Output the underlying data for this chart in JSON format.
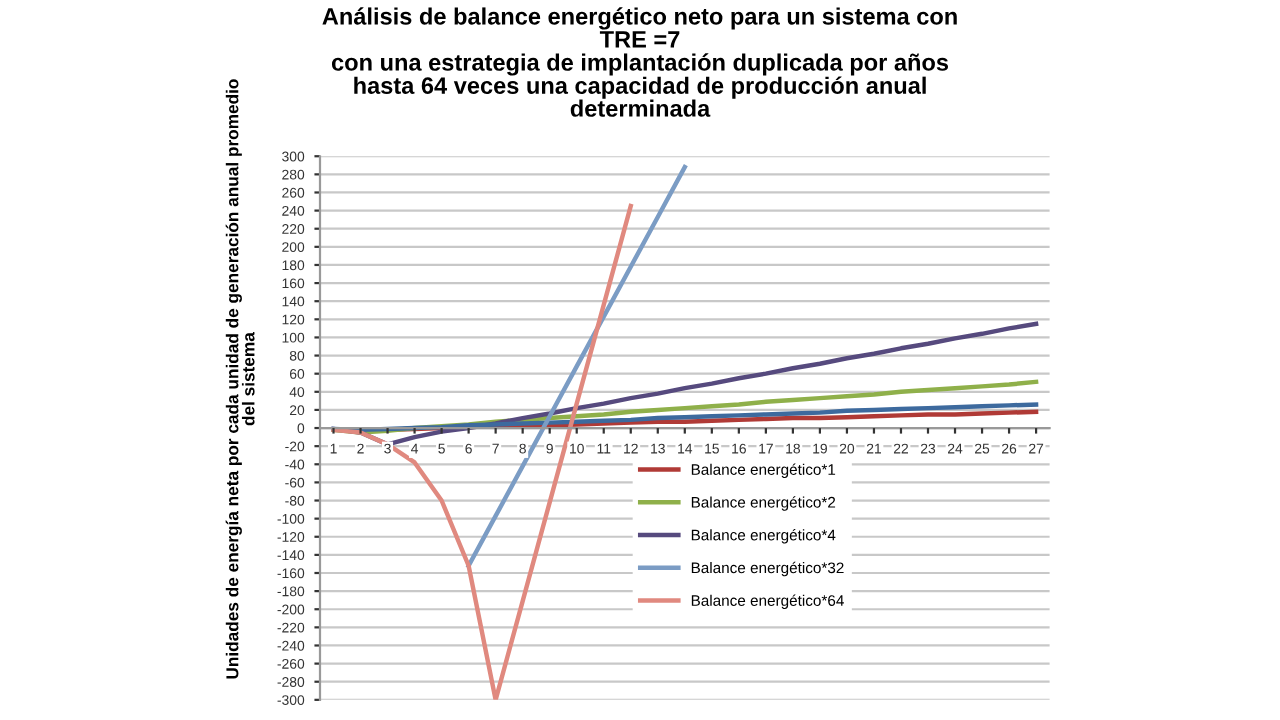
{
  "chart_data": {
    "type": "line",
    "title": "Análisis de balance energético neto para un sistema con\nTRE =7\ncon una estrategia de implantación duplicada por años\nhasta 64 veces una capacidad de producción anual\ndeterminada",
    "ylabel": "Unidades de energía neta por cada unidad de generación anual promedio\ndel sistema",
    "categories": [
      "1",
      "2",
      "3",
      "4",
      "5",
      "6",
      "7",
      "8",
      "9",
      "10",
      "11",
      "12",
      "13",
      "14",
      "15",
      "16",
      "17",
      "18",
      "19",
      "20",
      "21",
      "22",
      "23",
      "24",
      "25",
      "26",
      "27"
    ],
    "series": [
      {
        "name": "Balance energético*1",
        "color": "#b03a36",
        "values": [
          -2,
          -3,
          -2,
          -1,
          0,
          1,
          2,
          3,
          3,
          4,
          5,
          6,
          7,
          7,
          8,
          9,
          10,
          11,
          11,
          12,
          13,
          14,
          15,
          15,
          16,
          17,
          18
        ]
      },
      {
        "name": "Balance energético*2",
        "color": "#8fb04a",
        "values": [
          -2,
          -5,
          -3,
          0,
          2,
          4,
          7,
          9,
          11,
          13,
          15,
          18,
          20,
          22,
          24,
          26,
          29,
          31,
          33,
          35,
          37,
          40,
          42,
          44,
          46,
          48,
          51
        ]
      },
      {
        "name": "Balance energético*4",
        "color": "#564a7e",
        "values": [
          -1,
          -5,
          -18,
          -10,
          -4,
          0,
          5,
          11,
          16,
          22,
          27,
          33,
          38,
          44,
          49,
          55,
          60,
          66,
          71,
          77,
          82,
          88,
          93,
          99,
          104,
          110,
          115
        ]
      },
      {
        "color": "#3d6a9e",
        "values": [
          -1,
          -2,
          -1,
          0,
          1,
          3,
          4,
          5,
          6,
          7,
          8,
          9,
          11,
          12,
          13,
          14,
          15,
          16,
          17,
          19,
          20,
          21,
          22,
          23,
          24,
          25,
          26
        ]
      },
      {
        "name": "Balance energético*32",
        "color": "#7b9cc4",
        "values": [
          null,
          null,
          null,
          null,
          null,
          -152,
          -97,
          -42,
          13,
          68,
          123,
          178,
          233,
          288,
          null,
          null,
          null,
          null,
          null,
          null,
          null,
          null,
          null,
          null,
          null,
          null,
          null
        ]
      },
      {
        "name": "Balance energético*64",
        "color": "#e0897f",
        "values": [
          -2,
          -5,
          -18,
          -38,
          -80,
          -152,
          -300,
          -191,
          -82,
          27,
          136,
          245,
          null,
          null,
          null,
          null,
          null,
          null,
          null,
          null,
          null,
          null,
          null,
          null,
          null,
          null,
          null
        ]
      }
    ],
    "ylim": [
      -300,
      300
    ],
    "yticks": [
      -300,
      -280,
      -260,
      -240,
      -220,
      -200,
      -180,
      -160,
      -140,
      -120,
      -100,
      -80,
      -60,
      -40,
      -20,
      0,
      20,
      40,
      60,
      80,
      100,
      120,
      140,
      160,
      180,
      200,
      220,
      240,
      260,
      280,
      300
    ],
    "grid": "y",
    "legend": "bottom",
    "marker": "none",
    "line_style": "solid"
  }
}
